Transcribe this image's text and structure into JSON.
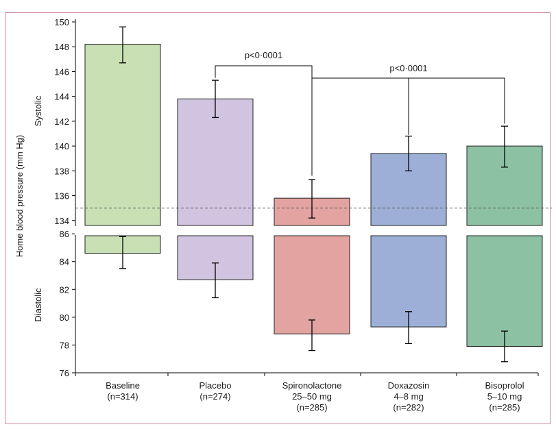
{
  "chart_data": {
    "type": "bar",
    "ylabel": "Home blood pressure (mm Hg)",
    "categories": [
      {
        "lines": [
          "Baseline",
          "(n=314)"
        ]
      },
      {
        "lines": [
          "Placebo",
          "(n=274)"
        ]
      },
      {
        "lines": [
          "Spironolactone",
          "25–50 mg",
          "(n=285)"
        ]
      },
      {
        "lines": [
          "Doxazosin",
          "4–8 mg",
          "(n=282)"
        ]
      },
      {
        "lines": [
          "Bisoprolol",
          "5–10 mg",
          "(n=285)"
        ]
      }
    ],
    "series": [
      {
        "name": "Systolic",
        "values": [
          148.2,
          143.8,
          135.8,
          139.4,
          140.0
        ],
        "error_low": [
          146.7,
          142.3,
          134.2,
          138.0,
          138.3
        ],
        "error_high": [
          149.6,
          145.3,
          137.3,
          140.8,
          141.6
        ],
        "ylim": [
          133.6,
          150
        ],
        "yticks": [
          134,
          136,
          138,
          140,
          142,
          144,
          146,
          148,
          150
        ],
        "reference_line": 135
      },
      {
        "name": "Diastolic",
        "values": [
          84.6,
          82.7,
          78.8,
          79.3,
          77.9
        ],
        "error_low": [
          83.5,
          81.4,
          77.6,
          78.1,
          76.8
        ],
        "error_high": [
          85.8,
          83.9,
          79.8,
          80.4,
          79.0
        ],
        "ylim": [
          76,
          86.6
        ],
        "yticks": [
          76,
          78,
          80,
          82,
          84,
          86
        ]
      }
    ],
    "colors": [
      "#c8e0b4",
      "#d0c4e0",
      "#e2a3a1",
      "#9dafd6",
      "#8cc1a4"
    ],
    "annotations": [
      {
        "text": "p<0·0001",
        "from": 1,
        "to": 2
      },
      {
        "text": "p<0·0001",
        "from": 2,
        "to": [
          3,
          4
        ]
      }
    ],
    "legend": "none",
    "grid": false
  }
}
